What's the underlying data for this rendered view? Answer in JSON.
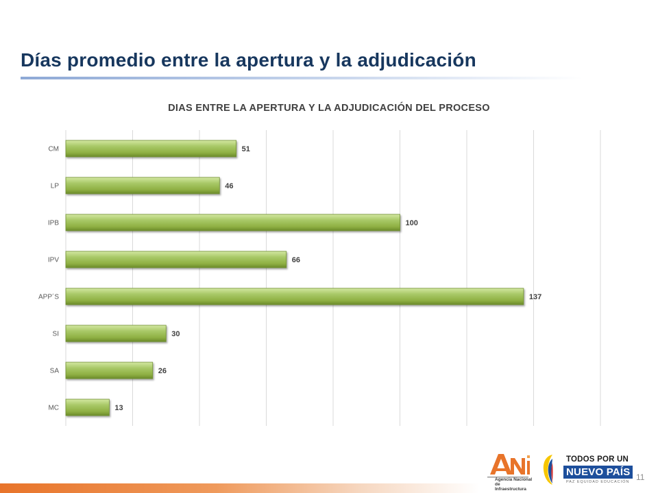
{
  "slide": {
    "title": "Días promedio entre la apertura y la adjudicación",
    "page_number": "11"
  },
  "colors": {
    "title": "#17375e",
    "bar_fill": "#9bbb59",
    "bar_highlight": "#d3e8a3",
    "bar_shadow": "#6b8a2a",
    "gridline": "#d9d9d9",
    "footer_accent": "#e8742a"
  },
  "chart_data": {
    "type": "bar",
    "orientation": "horizontal",
    "title": "DIAS ENTRE LA APERTURA Y LA ADJUDICACIÓN DEL PROCESO",
    "categories": [
      "CM",
      "LP",
      "IPB",
      "IPV",
      "APP´S",
      "SI",
      "SA",
      "MC"
    ],
    "values": [
      51,
      46,
      100,
      66,
      137,
      30,
      26,
      13
    ],
    "data_labels": [
      "51",
      "46",
      "100",
      "66",
      "137",
      "30",
      "26",
      "13"
    ],
    "xlabel": "",
    "ylabel": "",
    "xlim": [
      0,
      160
    ],
    "gridlines_every": 20,
    "grid": true,
    "legend": "none",
    "value_axis_labels_shown": false
  },
  "logos": {
    "ani": {
      "mark": "ANi",
      "caption_line1": "Agencia Nacional de",
      "caption_line2": "Infraestructura"
    },
    "gov": {
      "line1": "TODOS POR UN",
      "line2": "NUEVO PAÍS",
      "line3": "PAZ EQUIDAD EDUCACIÓN"
    }
  }
}
